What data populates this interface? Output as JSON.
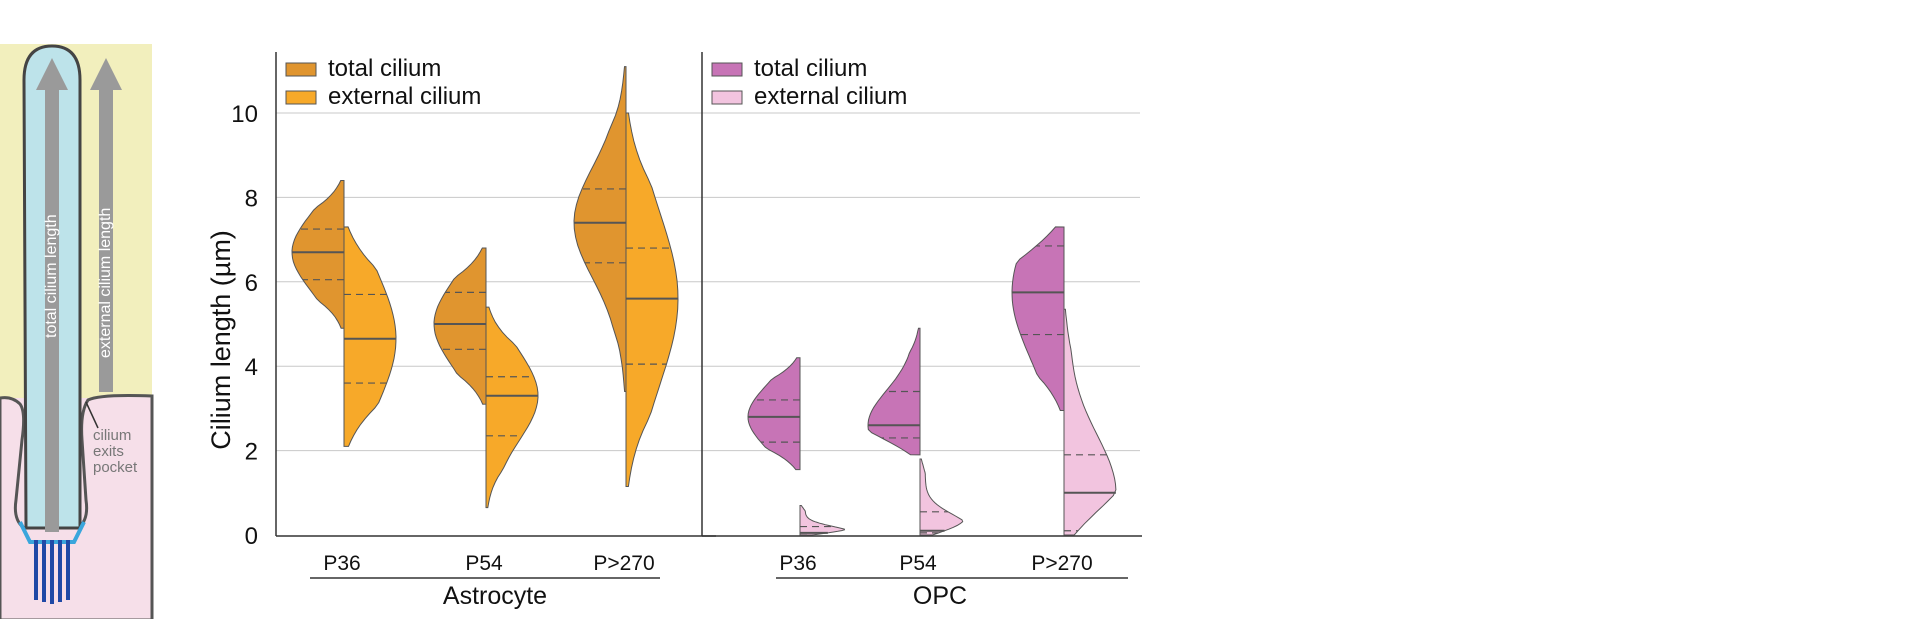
{
  "schematic": {
    "total_label": "total cilium length",
    "external_label": "external cilium length",
    "pocket_label": [
      "cilium",
      "exits",
      "pocket"
    ]
  },
  "axis": {
    "ylabel": "Cilium length (µm)",
    "ticks": [
      0,
      2,
      4,
      6,
      8,
      10
    ]
  },
  "chart_data": [
    {
      "type": "violin (split)",
      "group": "Astrocyte",
      "ylabel": "Cilium length (µm)",
      "ylim": [
        0,
        11.5
      ],
      "grid": true,
      "legend": "top-left",
      "categories": [
        "P36",
        "P54",
        "P>270"
      ],
      "series": [
        {
          "name": "total cilium",
          "color": "#e0952f",
          "min": [
            4.9,
            3.1,
            3.4
          ],
          "max": [
            8.4,
            6.8,
            11.1
          ],
          "median": [
            6.7,
            5.0,
            7.4
          ],
          "q1": [
            6.05,
            4.4,
            6.45
          ],
          "q3": [
            7.25,
            5.75,
            8.2
          ]
        },
        {
          "name": "external cilium",
          "color": "#f7a929",
          "min": [
            2.1,
            0.65,
            1.15
          ],
          "max": [
            7.3,
            5.4,
            10.0
          ],
          "median": [
            4.65,
            3.3,
            5.6
          ],
          "q1": [
            3.6,
            2.35,
            4.05
          ],
          "q3": [
            5.7,
            3.75,
            6.8
          ]
        }
      ]
    },
    {
      "type": "violin (split)",
      "group": "OPC",
      "ylim": [
        0,
        11.5
      ],
      "grid": true,
      "legend": "top-left",
      "categories": [
        "P36",
        "P54",
        "P>270"
      ],
      "series": [
        {
          "name": "total cilium",
          "color": "#c774b6",
          "min": [
            1.55,
            1.9,
            2.95
          ],
          "max": [
            4.2,
            4.9,
            7.3
          ],
          "median": [
            2.8,
            2.6,
            5.75
          ],
          "q1": [
            2.2,
            2.3,
            4.75
          ],
          "q3": [
            3.2,
            3.4,
            6.85
          ]
        },
        {
          "name": "external cilium",
          "color": "#f2c4df",
          "min": [
            0.0,
            0.0,
            0.0
          ],
          "max": [
            0.7,
            1.8,
            5.35
          ],
          "median": [
            0.05,
            0.1,
            1.0
          ],
          "q1": [
            0.0,
            0.05,
            0.1
          ],
          "q3": [
            0.2,
            0.55,
            1.9
          ]
        }
      ]
    }
  ]
}
